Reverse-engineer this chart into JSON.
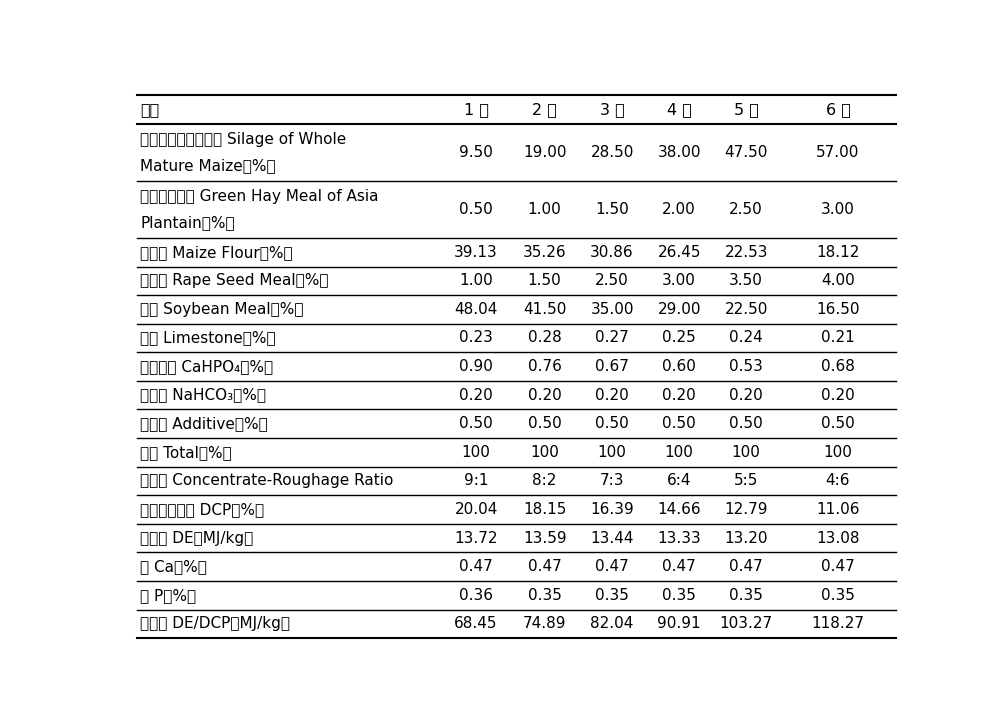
{
  "columns": [
    "项目",
    "1 组",
    "2 组",
    "3 组",
    "4 组",
    "5 组",
    "6 组"
  ],
  "rows": [
    {
      "label_lines": [
        "成熟期全株玉米青贮 Silage of Whole",
        "Mature Maize（%）"
      ],
      "values": [
        "9.50",
        "19.00",
        "28.50",
        "38.00",
        "47.50",
        "57.00"
      ]
    },
    {
      "label_lines": [
        "车前青干草粉 Green Hay Meal of Asia",
        "Plantain（%）"
      ],
      "values": [
        "0.50",
        "1.00",
        "1.50",
        "2.00",
        "2.50",
        "3.00"
      ]
    },
    {
      "label_lines": [
        "玉米粉 Maize Flour（%）"
      ],
      "values": [
        "39.13",
        "35.26",
        "30.86",
        "26.45",
        "22.53",
        "18.12"
      ]
    },
    {
      "label_lines": [
        "菜仔饼 Rape Seed Meal（%）"
      ],
      "values": [
        "1.00",
        "1.50",
        "2.50",
        "3.00",
        "3.50",
        "4.00"
      ]
    },
    {
      "label_lines": [
        "豆粕 Soybean Meal（%）"
      ],
      "values": [
        "48.04",
        "41.50",
        "35.00",
        "29.00",
        "22.50",
        "16.50"
      ]
    },
    {
      "label_lines": [
        "石粉 Limestone（%）"
      ],
      "values": [
        "0.23",
        "0.28",
        "0.27",
        "0.25",
        "0.24",
        "0.21"
      ]
    },
    {
      "label_lines": [
        "磷酸氢钙 CaHPO₄（%）"
      ],
      "values": [
        "0.90",
        "0.76",
        "0.67",
        "0.60",
        "0.53",
        "0.68"
      ]
    },
    {
      "label_lines": [
        "小苏打 NaHCO₃（%）"
      ],
      "values": [
        "0.20",
        "0.20",
        "0.20",
        "0.20",
        "0.20",
        "0.20"
      ]
    },
    {
      "label_lines": [
        "添加剂 Additive（%）"
      ],
      "values": [
        "0.50",
        "0.50",
        "0.50",
        "0.50",
        "0.50",
        "0.50"
      ]
    },
    {
      "label_lines": [
        "合计 Total（%）"
      ],
      "values": [
        "100",
        "100",
        "100",
        "100",
        "100",
        "100"
      ]
    },
    {
      "label_lines": [
        "精粗比 Concentrate-Roughage Ratio"
      ],
      "values": [
        "9:1",
        "8:2",
        "7:3",
        "6:4",
        "5:5",
        "4:6"
      ]
    },
    {
      "label_lines": [
        "可消化粗蛋白 DCP（%）"
      ],
      "values": [
        "20.04",
        "18.15",
        "16.39",
        "14.66",
        "12.79",
        "11.06"
      ]
    },
    {
      "label_lines": [
        "消化能 DE（MJ/kg）"
      ],
      "values": [
        "13.72",
        "13.59",
        "13.44",
        "13.33",
        "13.20",
        "13.08"
      ]
    },
    {
      "label_lines": [
        "钙 Ca（%）"
      ],
      "values": [
        "0.47",
        "0.47",
        "0.47",
        "0.47",
        "0.47",
        "0.47"
      ]
    },
    {
      "label_lines": [
        "磷 P（%）"
      ],
      "values": [
        "0.36",
        "0.35",
        "0.35",
        "0.35",
        "0.35",
        "0.35"
      ]
    },
    {
      "label_lines": [
        "能氮比 DE/DCP（MJ/kg）"
      ],
      "values": [
        "68.45",
        "74.89",
        "82.04",
        "90.91",
        "103.27",
        "118.27"
      ]
    }
  ],
  "bg_color": "#ffffff",
  "text_color": "#000000",
  "line_color": "#000000",
  "font_size": 11.0,
  "header_font_size": 11.5
}
